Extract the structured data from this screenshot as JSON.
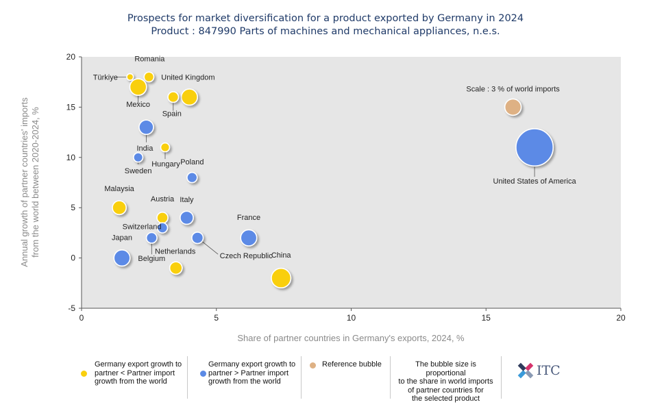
{
  "header": {
    "title_line1": "Prospects for market diversification for a product exported by Germany in 2024",
    "title_line2": "Product : 847990 Parts of machines and mechanical appliances, n.e.s."
  },
  "chart_data": {
    "type": "scatter",
    "subtype": "bubble",
    "xlabel": "Share of partner countries in Germany's exports, 2024, %",
    "ylabel_line1": "Annual growth of partner countries' imports",
    "ylabel_line2": "from the world between 2020-2024, %",
    "xlim": [
      0,
      20
    ],
    "ylim": [
      -5,
      20
    ],
    "xticks": [
      0,
      5,
      10,
      15,
      20
    ],
    "yticks": [
      -5,
      0,
      5,
      10,
      15,
      20
    ],
    "grid": false,
    "colors": {
      "yellow": "#f9cf0e",
      "blue": "#5b8ae6",
      "reference": "#deb184",
      "plot_bg": "#e6e6e6"
    },
    "series": [
      {
        "name": "Germany export growth to partner < Partner import growth from the world",
        "color": "yellow",
        "points": [
          {
            "label": "Türkiye",
            "x": 1.8,
            "y": 18,
            "size": 0.25
          },
          {
            "label": "Romania",
            "x": 2.5,
            "y": 18,
            "size": 0.55
          },
          {
            "label": "Mexico",
            "x": 2.1,
            "y": 17,
            "size": 1.6
          },
          {
            "label": "United Kingdom",
            "x": 4.0,
            "y": 16,
            "size": 1.5
          },
          {
            "label": "Spain",
            "x": 3.4,
            "y": 16,
            "size": 0.65
          },
          {
            "label": "Hungary",
            "x": 3.1,
            "y": 11,
            "size": 0.45
          },
          {
            "label": "Malaysia",
            "x": 1.4,
            "y": 5,
            "size": 1.1
          },
          {
            "label": "Austria",
            "x": 3.0,
            "y": 4,
            "size": 0.7
          },
          {
            "label": "Netherlands",
            "x": 3.5,
            "y": -1,
            "size": 0.9
          },
          {
            "label": "China",
            "x": 7.4,
            "y": -2,
            "size": 2.2
          }
        ]
      },
      {
        "name": "Germany export growth to partner > Partner import growth from the world",
        "color": "blue",
        "points": [
          {
            "label": "India",
            "x": 2.4,
            "y": 13,
            "size": 1.2
          },
          {
            "label": "Sweden",
            "x": 2.1,
            "y": 10,
            "size": 0.5
          },
          {
            "label": "Poland",
            "x": 4.1,
            "y": 8,
            "size": 0.6
          },
          {
            "label": "Italy",
            "x": 3.9,
            "y": 4,
            "size": 1.0
          },
          {
            "label": "Switzerland",
            "x": 3.0,
            "y": 3,
            "size": 0.6
          },
          {
            "label": "Belgium",
            "x": 2.6,
            "y": 2,
            "size": 0.65
          },
          {
            "label": "Czech Republic",
            "x": 4.3,
            "y": 2,
            "size": 0.75
          },
          {
            "label": "France",
            "x": 6.2,
            "y": 2,
            "size": 1.5
          },
          {
            "label": "Japan",
            "x": 1.5,
            "y": 0,
            "size": 1.5
          },
          {
            "label": "United States of America",
            "x": 16.8,
            "y": 11,
            "size": 8.0
          }
        ]
      },
      {
        "name": "Reference bubble",
        "color": "reference",
        "points": [
          {
            "label": "Scale : 3 % of world imports",
            "x": 16.0,
            "y": 15,
            "size": 1.55
          }
        ]
      }
    ]
  },
  "legend": {
    "yellow_label": "Germany export growth to partner < Partner import growth from the world",
    "yellow_lines": [
      "Germany export growth to",
      "partner < Partner import",
      "growth from the world"
    ],
    "blue_label": "Germany export growth to partner > Partner import growth from the world",
    "blue_lines": [
      "Germany export growth to",
      "partner > Partner import",
      "growth from the world"
    ],
    "reference_label": "Reference bubble",
    "note_lines": [
      "The bubble size is proportional",
      "to the share in world imports",
      "of partner countries for",
      "the selected product"
    ]
  },
  "logo": {
    "text": "ITC"
  }
}
